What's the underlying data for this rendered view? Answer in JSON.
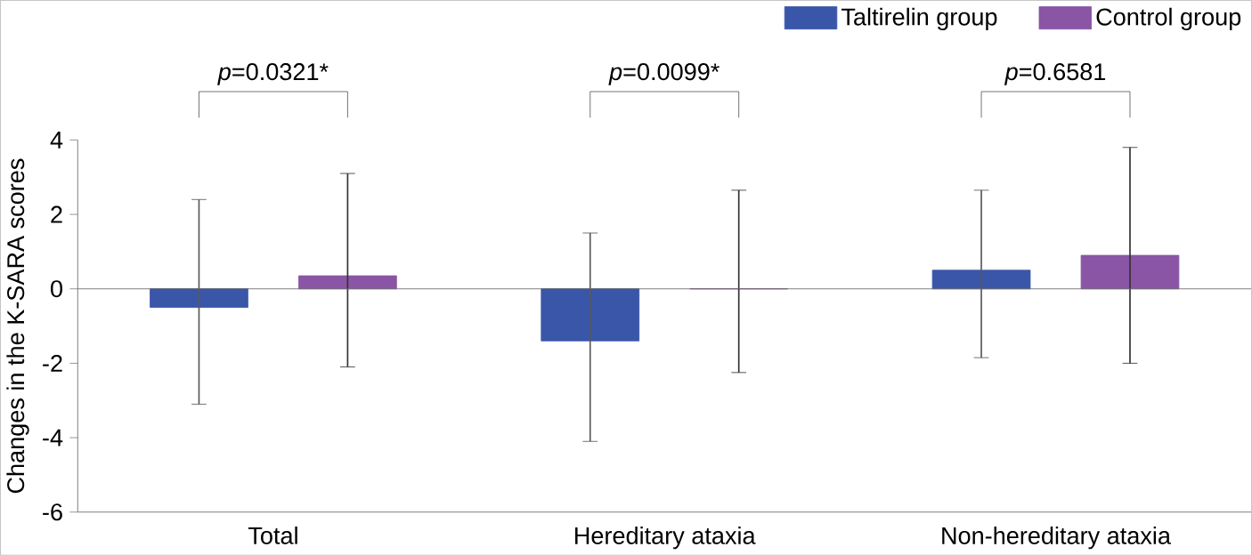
{
  "chart_data": {
    "type": "bar",
    "ylabel": "Changes in the K-SARA scores",
    "categories": [
      "Total",
      "Hereditary ataxia",
      "Non-hereditary ataxia"
    ],
    "series": [
      {
        "name": "Taltirelin group",
        "color": "#3a56a8",
        "values": [
          -0.5,
          -1.4,
          0.5
        ],
        "errors": [
          [
            -3.1,
            2.4
          ],
          [
            -4.1,
            1.5
          ],
          [
            -1.85,
            2.65
          ]
        ]
      },
      {
        "name": "Control group",
        "color": "#8a55a5",
        "values": [
          0.35,
          0,
          0.9
        ],
        "errors": [
          [
            -2.1,
            3.1
          ],
          [
            -2.25,
            2.65
          ],
          [
            -2.0,
            3.8
          ]
        ]
      }
    ],
    "ylim": [
      -6,
      4
    ],
    "yticks": [
      -6,
      -4,
      -2,
      0,
      2,
      4
    ],
    "legend": "top right",
    "annotations": [
      "*p*=0.0321*",
      "*p*=0.0099*",
      "*p*=0.6581"
    ]
  }
}
